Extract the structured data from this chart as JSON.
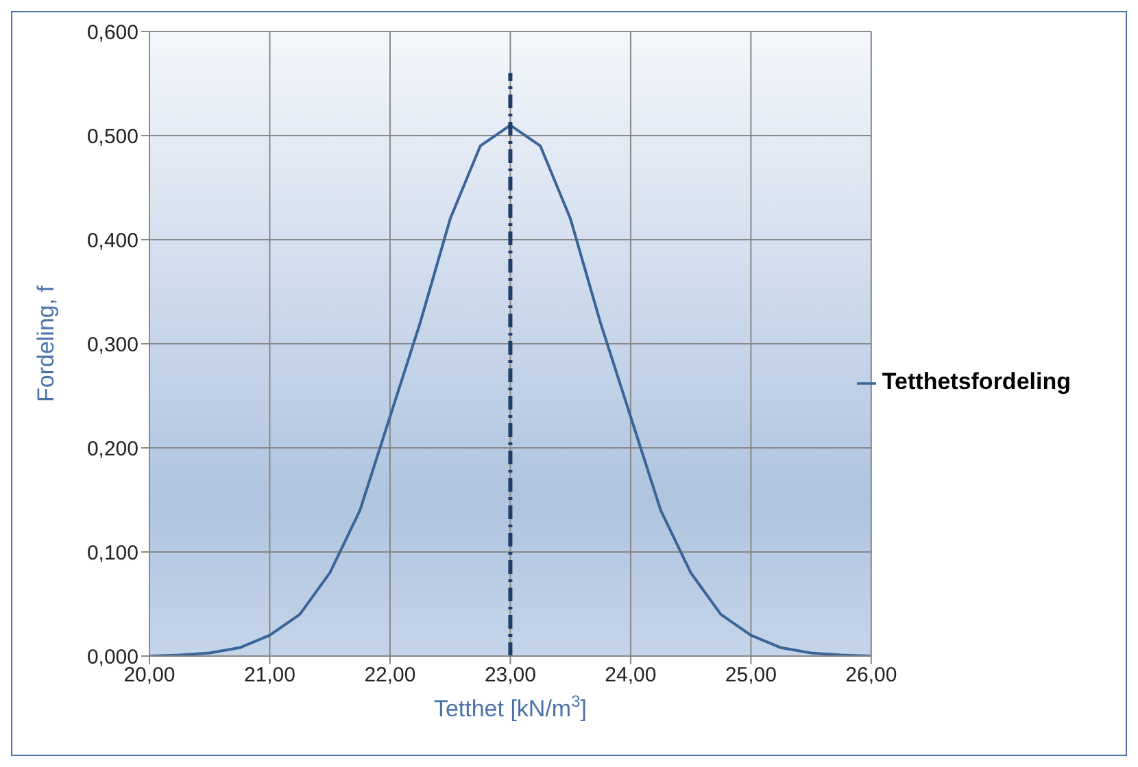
{
  "chart_data": {
    "type": "line",
    "xlabel": "Tetthet [kN/m$^{3}$]",
    "ylabel": "Fordeling, f",
    "xlim": [
      20,
      26
    ],
    "xticks": [
      {
        "value": 20,
        "label": "20,00"
      },
      {
        "value": 21,
        "label": "21,00"
      },
      {
        "value": 22,
        "label": "22,00"
      },
      {
        "value": 23,
        "label": "23,00"
      },
      {
        "value": 24,
        "label": "24,00"
      },
      {
        "value": 25,
        "label": "25,00"
      },
      {
        "value": 26,
        "label": "26,00"
      }
    ],
    "ylim": [
      0,
      0.6
    ],
    "yticks": [
      {
        "value": 0,
        "label": "0,000"
      },
      {
        "value": 0.1,
        "label": "0,100"
      },
      {
        "value": 0.2,
        "label": "0,200"
      },
      {
        "value": 0.3,
        "label": "0,300"
      },
      {
        "value": 0.4,
        "label": "0,400"
      },
      {
        "value": 0.5,
        "label": "0,500"
      },
      {
        "value": 0.6,
        "label": "0,600"
      }
    ],
    "grid": true,
    "legend": "right",
    "marker": "none",
    "series": [
      {
        "name": "Tetthetsfordeling",
        "color": "#3b6499",
        "line_style": "solid",
        "x": [
          20,
          20.25,
          20.5,
          20.75,
          21,
          21.25,
          21.5,
          21.75,
          22,
          22.25,
          22.5,
          22.75,
          23,
          23.25,
          23.5,
          23.75,
          24,
          24.25,
          24.5,
          24.75,
          25,
          25.25,
          25.5,
          25.75,
          26
        ],
        "values": [
          0.0,
          0.001,
          0.003,
          0.008,
          0.02,
          0.04,
          0.08,
          0.14,
          0.23,
          0.32,
          0.42,
          0.49,
          0.51,
          0.49,
          0.42,
          0.32,
          0.23,
          0.14,
          0.08,
          0.04,
          0.02,
          0.008,
          0.003,
          0.001,
          0.0
        ]
      },
      {
        "type": "line",
        "color": "#1f3d66",
        "line_style": "dashed",
        "x": [
          23,
          23
        ],
        "values": [
          0,
          0.56
        ]
      }
    ]
  }
}
